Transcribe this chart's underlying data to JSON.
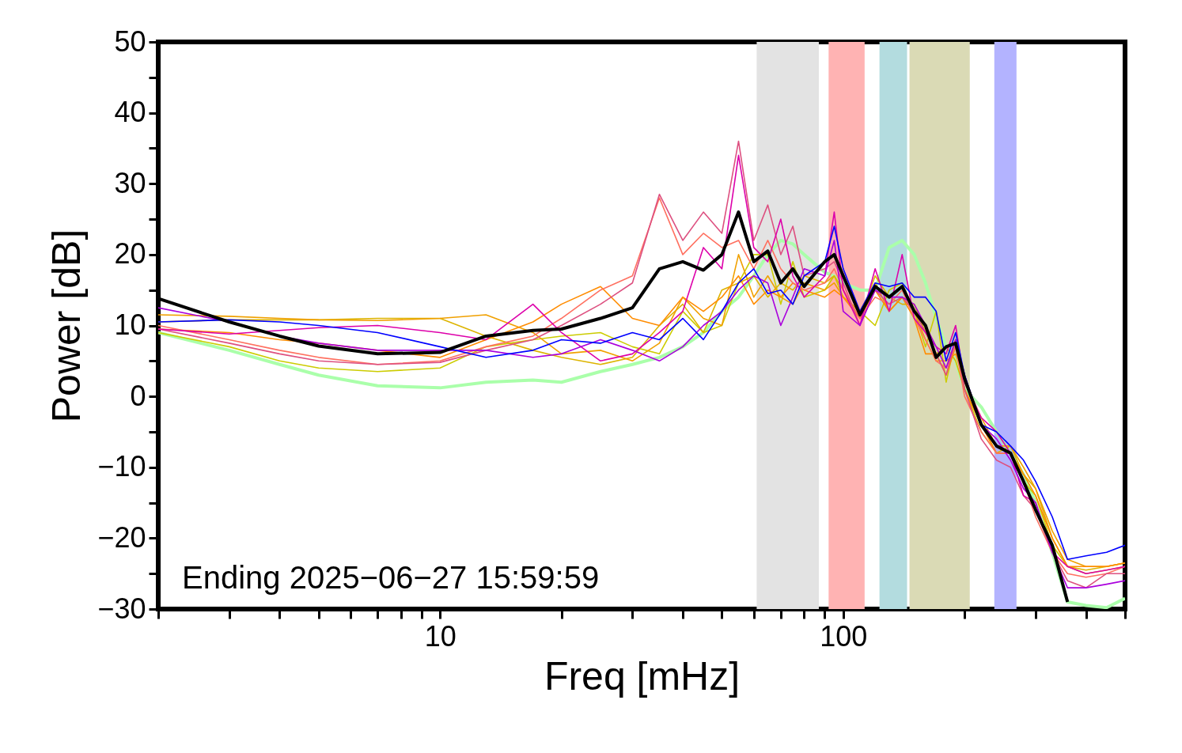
{
  "chart_data": {
    "type": "line",
    "xlabel": "Freq [mHz]",
    "ylabel": "Power [dB]",
    "log": "x",
    "grid": false,
    "legend": false,
    "line_style": "solid",
    "marker": "none",
    "xlim": [
      2,
      500
    ],
    "ylim": [
      -30,
      50
    ],
    "xticks": [
      {
        "value": 2,
        "label": null
      },
      {
        "value": 3,
        "label": null
      },
      {
        "value": 4,
        "label": null
      },
      {
        "value": 5,
        "label": null
      },
      {
        "value": 6,
        "label": null
      },
      {
        "value": 7,
        "label": null
      },
      {
        "value": 8,
        "label": null
      },
      {
        "value": 9,
        "label": null
      },
      10,
      {
        "value": 20,
        "label": null
      },
      {
        "value": 30,
        "label": null
      },
      {
        "value": 40,
        "label": null
      },
      {
        "value": 50,
        "label": null
      },
      {
        "value": 60,
        "label": null
      },
      {
        "value": 70,
        "label": null
      },
      {
        "value": 80,
        "label": null
      },
      {
        "value": 90,
        "label": null
      },
      100,
      {
        "value": 200,
        "label": null
      },
      {
        "value": 300,
        "label": null
      },
      {
        "value": 400,
        "label": null
      },
      {
        "value": 500,
        "label": null
      }
    ],
    "yticks": [
      -30,
      {
        "value": -25,
        "label": null
      },
      -20,
      {
        "value": -15,
        "label": null
      },
      -10,
      {
        "value": -5,
        "label": null
      },
      0,
      {
        "value": 5,
        "label": null
      },
      10,
      {
        "value": 15,
        "label": null
      },
      20,
      {
        "value": 25,
        "label": null
      },
      30,
      {
        "value": 35,
        "label": null
      },
      40,
      {
        "value": 45,
        "label": null
      },
      50
    ],
    "x": [
      2,
      3,
      4,
      5,
      7,
      10,
      13,
      17,
      20,
      25,
      30,
      35,
      40,
      45,
      50,
      55,
      60,
      65,
      70,
      75,
      80,
      90,
      95,
      100,
      110,
      120,
      130,
      140,
      150,
      160,
      170,
      180,
      190,
      200,
      220,
      240,
      260,
      280,
      300,
      330,
      360,
      400,
      450,
      500
    ],
    "series": [
      {
        "color": "#aaffaa",
        "values": [
          9,
          6.5,
          4.5,
          3,
          1.5,
          1.2,
          2,
          2.3,
          2,
          3.5,
          4.5,
          5.5,
          7,
          9,
          12,
          14,
          17,
          20,
          22,
          21.5,
          20,
          17.5,
          17,
          16,
          15,
          15,
          21,
          22,
          20,
          16,
          11,
          7,
          5,
          1,
          -1.5,
          -5,
          -8,
          -11,
          -15,
          -22,
          -29,
          -29.5,
          -29.8,
          -28.5
        ]
      },
      {
        "color": "#cccc00",
        "values": [
          9,
          7,
          5,
          4,
          3.5,
          4,
          7,
          8,
          8.5,
          9,
          7,
          6,
          12,
          9,
          10,
          16,
          20,
          20,
          13,
          19,
          14,
          15,
          17,
          14,
          12,
          10,
          15,
          16,
          12,
          7,
          12,
          2,
          8,
          1,
          -5,
          -8,
          -8,
          -12,
          -14,
          -21,
          -24,
          -25,
          -24.5,
          -24
        ]
      },
      {
        "color": "#ddb400",
        "values": [
          10.5,
          10.8,
          10.8,
          10.8,
          11,
          11,
          8.5,
          6.5,
          5.5,
          4.5,
          5.5,
          10,
          13,
          9,
          15,
          16,
          17,
          14,
          16,
          15,
          17,
          16,
          17,
          15,
          11,
          17,
          14,
          13,
          13,
          9,
          6,
          7,
          5,
          1,
          -4,
          -8,
          -7,
          -11,
          -13,
          -20,
          -24,
          -24.5,
          -24,
          -23.5
        ]
      },
      {
        "color": "#f0a000",
        "values": [
          11.5,
          11.3,
          11,
          10.8,
          10.7,
          11,
          11.5,
          9,
          6,
          6.5,
          5,
          7.5,
          14,
          11,
          10,
          20,
          14,
          17,
          14,
          13,
          16,
          15,
          16,
          14,
          12,
          16,
          12,
          14,
          12,
          8,
          5,
          5,
          6,
          2,
          -3,
          -7,
          -7,
          -10,
          -13,
          -19,
          -23,
          -24,
          -24,
          -23.5
        ]
      },
      {
        "color": "#ff8c00",
        "values": [
          9.5,
          9,
          8,
          7.5,
          6.5,
          5.5,
          8,
          10.5,
          13,
          15.5,
          11,
          10,
          14,
          12,
          14,
          17,
          13,
          15,
          14,
          16,
          15,
          14,
          15,
          14,
          11,
          15,
          12,
          14,
          11,
          6,
          6,
          3,
          7,
          1,
          -4,
          -8,
          -8,
          -11,
          -14,
          -20,
          -24,
          -24,
          -24,
          -23.5
        ]
      },
      {
        "color": "#ff7060",
        "values": [
          10,
          8,
          6.5,
          5.5,
          4.5,
          5,
          7,
          8.5,
          11,
          15,
          17,
          28,
          20,
          23,
          21,
          22,
          18,
          22,
          18,
          16,
          15,
          16,
          18,
          15,
          11,
          14,
          13,
          15,
          11,
          8,
          5,
          4,
          7,
          0,
          -5,
          -8,
          -8,
          -12,
          -17,
          -22,
          -25,
          -25.5,
          -25,
          -24
        ]
      },
      {
        "color": "#dd5080",
        "values": [
          9.5,
          7.5,
          6,
          5,
          4.5,
          4.8,
          6.5,
          8,
          10,
          13,
          16,
          28.5,
          22,
          26,
          23,
          36,
          22,
          27,
          20,
          24,
          17,
          18,
          19,
          16,
          10,
          15,
          13,
          14,
          12,
          9,
          6,
          3,
          8,
          1,
          -6,
          -9,
          -10,
          -14,
          -16,
          -22,
          -26,
          -27,
          -25,
          -25
        ]
      },
      {
        "color": "#dd00aa",
        "values": [
          9.5,
          8.8,
          9.3,
          9.7,
          10,
          9,
          8,
          13,
          9,
          5,
          6,
          9,
          12,
          21,
          18,
          34,
          21,
          19,
          25,
          17,
          14,
          17,
          26,
          15,
          10,
          18,
          12,
          20,
          11,
          9,
          7,
          6,
          10,
          2,
          -3,
          -5,
          -8,
          -14,
          -15,
          -22,
          -24,
          -25,
          -24.5,
          -24
        ]
      },
      {
        "color": "#aa00dd",
        "values": [
          12.5,
          10.5,
          8.5,
          7.5,
          6.5,
          6.5,
          6.5,
          5.5,
          6,
          8,
          6.5,
          5,
          7,
          10,
          12,
          15,
          17,
          16,
          10,
          14,
          18,
          17,
          22,
          12,
          10,
          15,
          14,
          14,
          13,
          10,
          7,
          4,
          8,
          3,
          -4,
          -6,
          -9,
          -13,
          -15,
          -22,
          -27,
          -27,
          -26.5,
          -26
        ]
      },
      {
        "color": "#0000ff",
        "values": [
          10.5,
          10.8,
          10.5,
          10,
          9,
          7,
          5.5,
          6.5,
          8,
          7.5,
          9,
          8,
          11,
          8,
          12,
          16,
          18,
          14.5,
          15,
          13,
          17,
          19,
          24,
          18,
          12,
          16,
          15.5,
          16,
          14,
          14,
          12,
          5,
          9,
          3,
          -4,
          -5,
          -7,
          -9,
          -12,
          -17,
          -23,
          -22.5,
          -22,
          -21
        ]
      },
      {
        "color": "#000000",
        "values": [
          13.8,
          10.5,
          8.5,
          7.1,
          6.0,
          6.2,
          8.5,
          9.3,
          9.5,
          11,
          12.5,
          18,
          19,
          17.8,
          20,
          26,
          19,
          20.5,
          16,
          18,
          15.5,
          19,
          20,
          17,
          11.5,
          15.5,
          14,
          15.5,
          12,
          10,
          5.5,
          7,
          7.5,
          2.5,
          -4,
          -7,
          -8,
          -12,
          -16,
          -21,
          -29,
          null,
          null,
          null
        ]
      }
    ],
    "bands": [
      {
        "axis": "x",
        "from": 61,
        "to": 87,
        "color": "#e3e3e3"
      },
      {
        "axis": "x",
        "from": 92,
        "to": 113,
        "color": "#ffb3b3"
      },
      {
        "axis": "x",
        "from": 123,
        "to": 144,
        "color": "#b3dcdf"
      },
      {
        "axis": "x",
        "from": 146,
        "to": 206,
        "color": "#dadab5"
      },
      {
        "axis": "x",
        "from": 237,
        "to": 269,
        "color": "#b3b3ff"
      }
    ],
    "annotations": [
      "Ending 2025−06−27 15:59:59"
    ]
  }
}
